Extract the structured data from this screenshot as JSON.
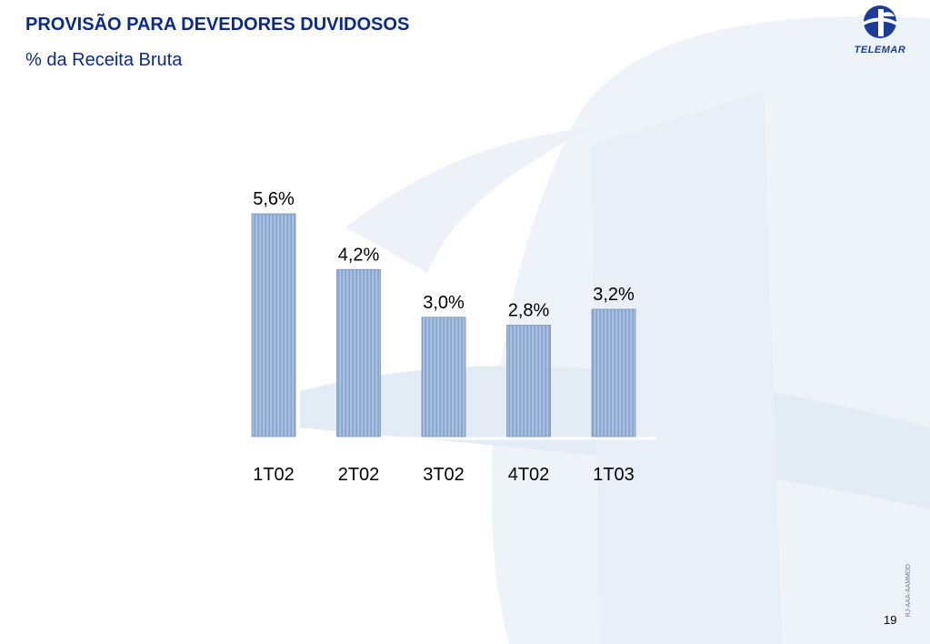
{
  "header": {
    "title": "PROVISÃO PARA DEVEDORES DUVIDOSOS",
    "subtitle": "% da Receita Bruta"
  },
  "logo": {
    "text": "TELEMAR",
    "icon": "telemar-globe-icon"
  },
  "footer": {
    "page_number": "19",
    "code": "RJ-AAA-AAMMDD"
  },
  "colors": {
    "title": "#0a2a8c",
    "bar_fill": "#9cb6d9",
    "bar_stripe": "#7f9cc6",
    "watermark": "#e4ecf6"
  },
  "chart_data": {
    "type": "bar",
    "categories": [
      "1T02",
      "2T02",
      "3T02",
      "4T02",
      "1T03"
    ],
    "values": [
      5.6,
      4.2,
      3.0,
      2.8,
      3.2
    ],
    "labels": [
      "5,6%",
      "4,2%",
      "3,0%",
      "2,8%",
      "3,2%"
    ],
    "ylim": [
      0,
      5.6
    ],
    "grid": false,
    "title": "",
    "xlabel": "",
    "ylabel": ""
  }
}
